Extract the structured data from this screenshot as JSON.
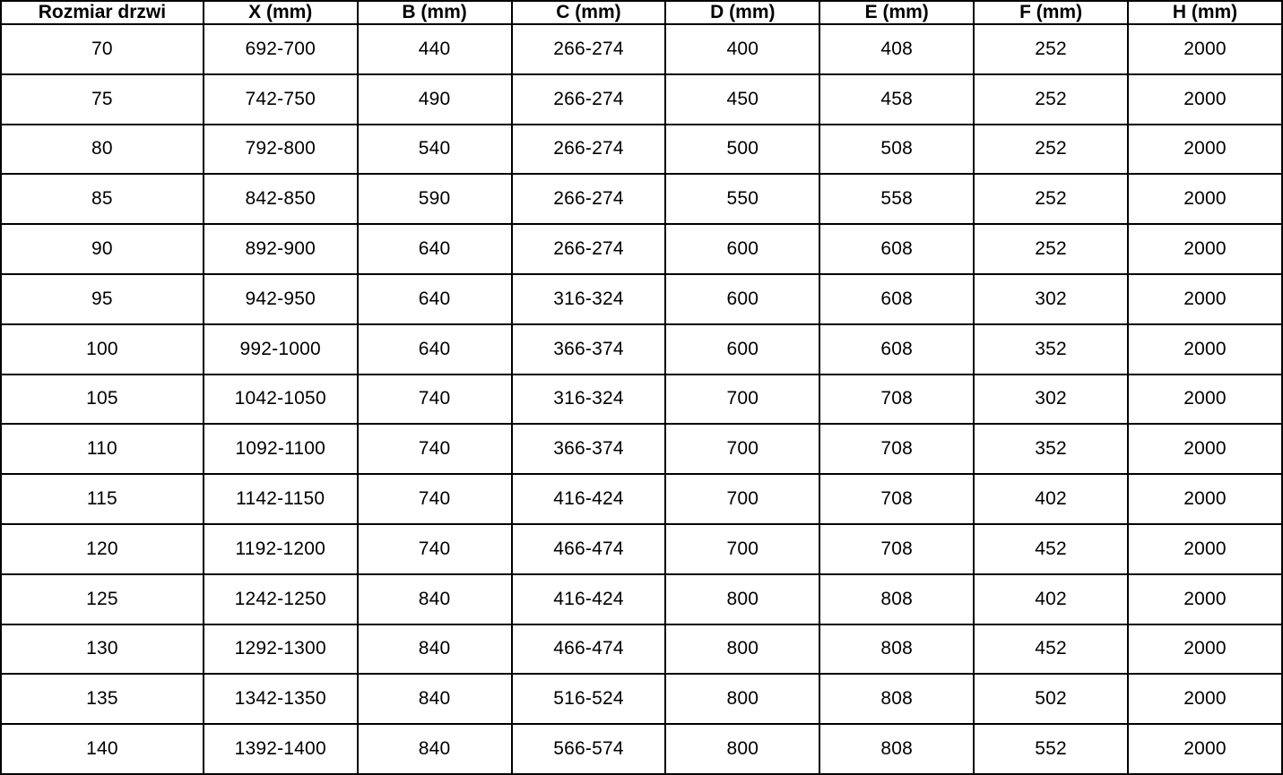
{
  "table": {
    "columns": [
      "Rozmiar drzwi",
      "X (mm)",
      "B (mm)",
      "C (mm)",
      "D (mm)",
      "E (mm)",
      "F (mm)",
      "H (mm)"
    ],
    "rows": [
      [
        "70",
        "692-700",
        "440",
        "266-274",
        "400",
        "408",
        "252",
        "2000"
      ],
      [
        "75",
        "742-750",
        "490",
        "266-274",
        "450",
        "458",
        "252",
        "2000"
      ],
      [
        "80",
        "792-800",
        "540",
        "266-274",
        "500",
        "508",
        "252",
        "2000"
      ],
      [
        "85",
        "842-850",
        "590",
        "266-274",
        "550",
        "558",
        "252",
        "2000"
      ],
      [
        "90",
        "892-900",
        "640",
        "266-274",
        "600",
        "608",
        "252",
        "2000"
      ],
      [
        "95",
        "942-950",
        "640",
        "316-324",
        "600",
        "608",
        "302",
        "2000"
      ],
      [
        "100",
        "992-1000",
        "640",
        "366-374",
        "600",
        "608",
        "352",
        "2000"
      ],
      [
        "105",
        "1042-1050",
        "740",
        "316-324",
        "700",
        "708",
        "302",
        "2000"
      ],
      [
        "110",
        "1092-1100",
        "740",
        "366-374",
        "700",
        "708",
        "352",
        "2000"
      ],
      [
        "115",
        "1142-1150",
        "740",
        "416-424",
        "700",
        "708",
        "402",
        "2000"
      ],
      [
        "120",
        "1192-1200",
        "740",
        "466-474",
        "700",
        "708",
        "452",
        "2000"
      ],
      [
        "125",
        "1242-1250",
        "840",
        "416-424",
        "800",
        "808",
        "402",
        "2000"
      ],
      [
        "130",
        "1292-1300",
        "840",
        "466-474",
        "800",
        "808",
        "452",
        "2000"
      ],
      [
        "135",
        "1342-1350",
        "840",
        "516-524",
        "800",
        "808",
        "502",
        "2000"
      ],
      [
        "140",
        "1392-1400",
        "840",
        "566-574",
        "800",
        "808",
        "552",
        "2000"
      ]
    ],
    "grid_color": "#000000",
    "text_color": "#000000",
    "background_color": "#ffffff"
  },
  "chart_data": {
    "type": "table",
    "title": "",
    "categories": [
      "Rozmiar drzwi",
      "X (mm)",
      "B (mm)",
      "C (mm)",
      "D (mm)",
      "E (mm)",
      "F (mm)",
      "H (mm)"
    ],
    "series": [
      {
        "name": "Rozmiar drzwi",
        "values": [
          70,
          75,
          80,
          85,
          90,
          95,
          100,
          105,
          110,
          115,
          120,
          125,
          130,
          135,
          140
        ]
      },
      {
        "name": "X (mm)",
        "values": [
          "692-700",
          "742-750",
          "792-800",
          "842-850",
          "892-900",
          "942-950",
          "992-1000",
          "1042-1050",
          "1092-1100",
          "1142-1150",
          "1192-1200",
          "1242-1250",
          "1292-1300",
          "1342-1350",
          "1392-1400"
        ]
      },
      {
        "name": "B (mm)",
        "values": [
          440,
          490,
          540,
          590,
          640,
          640,
          640,
          740,
          740,
          740,
          740,
          840,
          840,
          840,
          840
        ]
      },
      {
        "name": "C (mm)",
        "values": [
          "266-274",
          "266-274",
          "266-274",
          "266-274",
          "266-274",
          "316-324",
          "366-374",
          "316-324",
          "366-374",
          "416-424",
          "466-474",
          "416-424",
          "466-474",
          "516-524",
          "566-574"
        ]
      },
      {
        "name": "D (mm)",
        "values": [
          400,
          450,
          500,
          550,
          600,
          600,
          600,
          700,
          700,
          700,
          700,
          800,
          800,
          800,
          800
        ]
      },
      {
        "name": "E (mm)",
        "values": [
          408,
          458,
          508,
          558,
          608,
          608,
          608,
          708,
          708,
          708,
          708,
          808,
          808,
          808,
          808
        ]
      },
      {
        "name": "F (mm)",
        "values": [
          252,
          252,
          252,
          252,
          252,
          302,
          352,
          302,
          352,
          402,
          452,
          402,
          452,
          502,
          552
        ]
      },
      {
        "name": "H (mm)",
        "values": [
          2000,
          2000,
          2000,
          2000,
          2000,
          2000,
          2000,
          2000,
          2000,
          2000,
          2000,
          2000,
          2000,
          2000,
          2000
        ]
      }
    ]
  }
}
